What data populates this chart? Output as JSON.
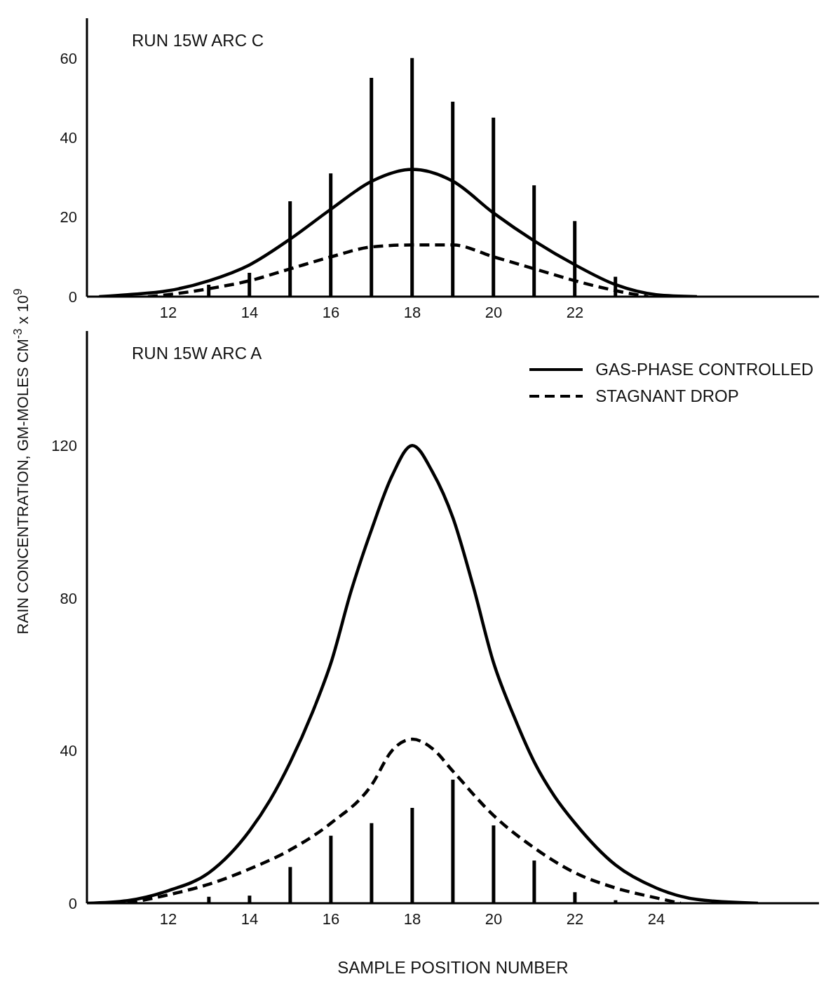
{
  "chart_data": [
    {
      "type": "line",
      "title": "RUN 15W ARC C",
      "xlim": [
        10,
        28
      ],
      "xticks": [
        12,
        14,
        16,
        18,
        20,
        22
      ],
      "ylim": [
        0,
        70
      ],
      "yticks": [
        0,
        20,
        40,
        60
      ],
      "legend": false,
      "marker": "none",
      "series": [
        {
          "type": "bar",
          "color": "#000000",
          "x": [
            13,
            14,
            15,
            16,
            17,
            18,
            19,
            20,
            21,
            22,
            23
          ],
          "values": [
            3,
            6,
            24,
            31,
            55,
            60,
            49,
            45,
            28,
            19,
            5
          ]
        },
        {
          "color": "#000000",
          "line_style": "solid",
          "x": [
            10.3,
            11,
            12,
            13,
            14,
            15,
            16,
            17,
            18,
            19,
            20,
            21,
            22,
            23,
            24,
            25
          ],
          "values": [
            0,
            0.5,
            1.5,
            4,
            8,
            14.5,
            22,
            29,
            32,
            29,
            21,
            14,
            8,
            3,
            0.5,
            0
          ]
        },
        {
          "color": "#000000",
          "line_style": "dashed",
          "x": [
            11.5,
            12,
            13,
            14,
            15,
            16,
            17,
            18,
            19,
            20,
            21,
            22,
            23,
            23.8
          ],
          "values": [
            0,
            0.5,
            2,
            4,
            7,
            10,
            12.5,
            13,
            13,
            10,
            7,
            4,
            1.5,
            0
          ]
        }
      ]
    },
    {
      "type": "line",
      "title": "RUN 15W ARC A",
      "xlabel": "SAMPLE POSITION NUMBER",
      "ylabel": "RAIN CONCENTRATION,  GM-MOLES CM$^{-3}$ x 10$^{9}$",
      "xlim": [
        10,
        28
      ],
      "xticks": [
        12,
        14,
        16,
        18,
        20,
        22,
        24
      ],
      "ylim": [
        0,
        150
      ],
      "yticks": [
        0,
        40,
        80,
        120
      ],
      "legend": "top right",
      "marker": "none",
      "series": [
        {
          "type": "bar",
          "color": "#000000",
          "x": [
            13,
            14,
            15,
            16,
            17,
            18,
            19,
            20,
            21,
            22,
            23
          ],
          "values": [
            1.7,
            2,
            9.5,
            17.7,
            21,
            25,
            32.4,
            20.4,
            11.2,
            2.9,
            0.8
          ]
        },
        {
          "name": "GAS-PHASE CONTROLLED",
          "color": "#000000",
          "line_style": "solid",
          "x": [
            10,
            11,
            12,
            13,
            14,
            14.5,
            15,
            15.6,
            16,
            16.5,
            17,
            17.5,
            18,
            18.5,
            19,
            19.5,
            20,
            20.5,
            21,
            21.5,
            22,
            23,
            24,
            25,
            26.5
          ],
          "values": [
            0,
            0.7,
            3.3,
            8,
            19,
            27,
            37,
            51.5,
            63,
            82,
            98,
            112,
            120,
            113,
            101,
            83,
            63,
            49,
            37,
            28,
            21,
            10,
            4,
            1,
            0
          ]
        },
        {
          "name": "STAGNANT DROP",
          "color": "#000000",
          "line_style": "dashed",
          "x": [
            11,
            12,
            13,
            14,
            15,
            16,
            17,
            17.5,
            18,
            18.5,
            19,
            20,
            21,
            22,
            23,
            24,
            24.6
          ],
          "values": [
            0,
            2.2,
            5,
            9,
            14,
            21,
            31,
            40,
            43,
            40.5,
            34.6,
            23,
            14.5,
            8,
            4,
            1.4,
            0
          ]
        }
      ]
    }
  ]
}
